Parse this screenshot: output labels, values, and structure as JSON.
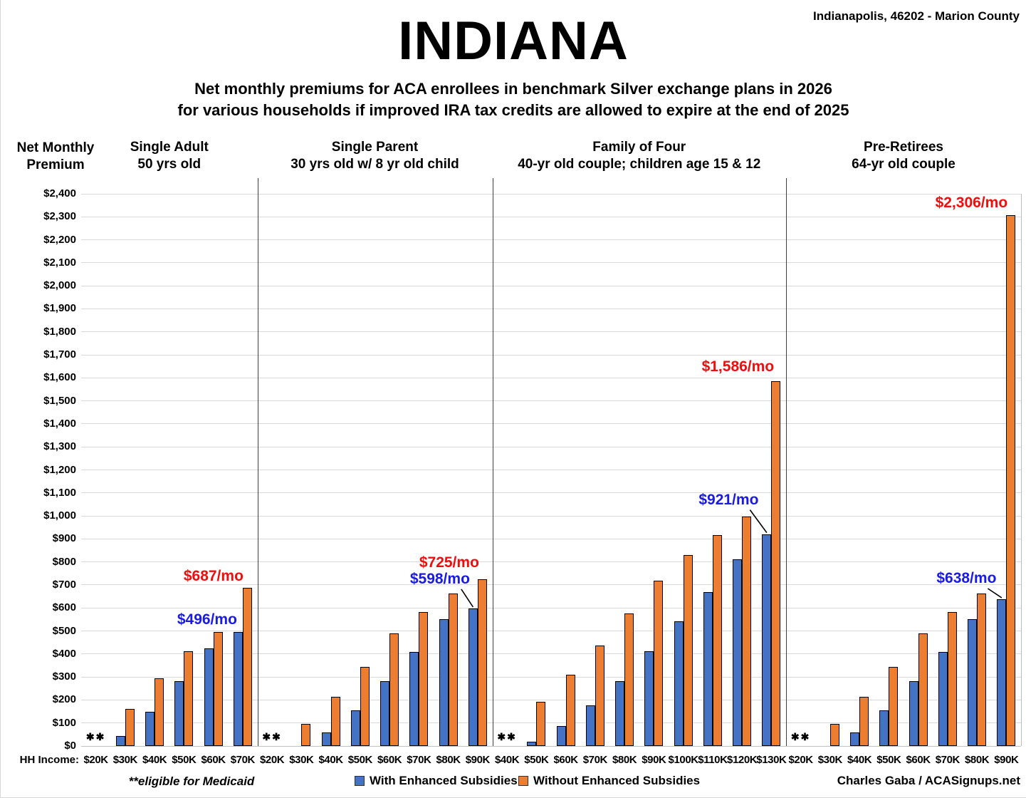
{
  "header": {
    "location": "Indianapolis, 46202 - Marion County",
    "title": "INDIANA",
    "subtitle_line1": "Net monthly premiums for ACA enrollees in benchmark Silver exchange plans in 2026",
    "subtitle_line2": "for various households if improved IRA tax credits are allowed to expire at the end of 2025"
  },
  "axes": {
    "y_title_line1": "Net Monthly",
    "y_title_line2": "Premium",
    "x_title": "HH Income:",
    "y_min": 0,
    "y_max": 2400,
    "y_step": 100
  },
  "legend": [
    {
      "label": "With Enhanced Subsidies",
      "color": "#4472C4"
    },
    {
      "label": "Without Enhanced Subsidies",
      "color": "#ED7D31"
    }
  ],
  "footer": {
    "medicaid_note": "**eligible for Medicaid",
    "attribution": "Charles Gaba / ACASignups.net"
  },
  "medicaid_marker": "✱✱",
  "colors": {
    "with_enhanced": "#4472C4",
    "without_enhanced": "#ED7D31",
    "label_red": "#F20D0D",
    "label_blue": "#1A1AE8",
    "gridline": "#d9d9d9"
  },
  "chart_data": {
    "type": "bar",
    "title": "INDIANA",
    "ylabel": "Net Monthly Premium",
    "xlabel": "HH Income",
    "ylim": [
      0,
      2400
    ],
    "grid": true,
    "legend_position": "bottom",
    "series_names": [
      "With Enhanced Subsidies",
      "Without Enhanced Subsidies"
    ],
    "panels": [
      {
        "title_line1": "Single Adult",
        "title_line2": "50 yrs old",
        "categories": [
          "$20K",
          "$30K",
          "$40K",
          "$50K",
          "$60K",
          "$70K"
        ],
        "with_enhanced": [
          null,
          44,
          150,
          281,
          425,
          496
        ],
        "without_enhanced": [
          null,
          160,
          295,
          411,
          495,
          687
        ],
        "medicaid_categories": [
          "$20K"
        ],
        "annotations": [
          {
            "text": "$496/mo",
            "color": "blue",
            "category": "$70K",
            "series": "with",
            "dx": -50,
            "gap": 4,
            "leader": false
          },
          {
            "text": "$687/mo",
            "color": "red",
            "category": "$70K",
            "series": "without",
            "dx": -41,
            "gap": 3,
            "leader": false
          }
        ]
      },
      {
        "title_line1": "Single Parent",
        "title_line2": "30 yrs old w/ 8 yr old child",
        "categories": [
          "$20K",
          "$30K",
          "$40K",
          "$50K",
          "$60K",
          "$70K",
          "$80K",
          "$90K"
        ],
        "with_enhanced": [
          null,
          0,
          58,
          154,
          281,
          410,
          551,
          598
        ],
        "without_enhanced": [
          null,
          96,
          213,
          344,
          488,
          581,
          664,
          725
        ],
        "medicaid_categories": [
          "$20K"
        ],
        "annotations": [
          {
            "text": "$725/mo",
            "color": "red",
            "category": "$90K",
            "series": "without",
            "dx": -40,
            "gap": 10,
            "leader": false
          },
          {
            "text": "$598/mo",
            "color": "blue",
            "category": "$90K",
            "series": "with",
            "dx": -53,
            "gap": 28,
            "leader": true
          }
        ]
      },
      {
        "title_line1": "Family of Four",
        "title_line2": "40-yr old couple; children age 15 & 12",
        "categories": [
          "$40K",
          "$50K",
          "$60K",
          "$70K",
          "$80K",
          "$90K",
          "$100K",
          "$110K",
          "$120K",
          "$130K"
        ],
        "with_enhanced": [
          null,
          20,
          86,
          176,
          283,
          413,
          541,
          670,
          812,
          921
        ],
        "without_enhanced": [
          null,
          193,
          310,
          437,
          576,
          720,
          831,
          918,
          997,
          1586
        ],
        "medicaid_categories": [
          "$40K"
        ],
        "annotations": [
          {
            "text": "$1,586/mo",
            "color": "red",
            "category": "$130K",
            "series": "without",
            "dx": -47,
            "gap": 7,
            "leader": false
          },
          {
            "text": "$921/mo",
            "color": "blue",
            "category": "$130K",
            "series": "with",
            "dx": -60,
            "gap": 35,
            "leader": true
          }
        ]
      },
      {
        "title_line1": "Pre-Retirees",
        "title_line2": "64-yr old couple",
        "categories": [
          "$20K",
          "$30K",
          "$40K",
          "$50K",
          "$60K",
          "$70K",
          "$80K",
          "$90K"
        ],
        "with_enhanced": [
          null,
          0,
          58,
          154,
          281,
          410,
          551,
          638
        ],
        "without_enhanced": [
          null,
          96,
          213,
          344,
          488,
          581,
          664,
          2306
        ],
        "medicaid_categories": [
          "$20K"
        ],
        "annotations": [
          {
            "text": "$2,306/mo",
            "color": "red",
            "category": "$90K",
            "series": "without",
            "dx": -49,
            "gap": 4,
            "leader": false
          },
          {
            "text": "$638/mo",
            "color": "blue",
            "category": "$90K",
            "series": "with",
            "dx": -56,
            "gap": 16,
            "leader": true
          }
        ]
      }
    ]
  }
}
